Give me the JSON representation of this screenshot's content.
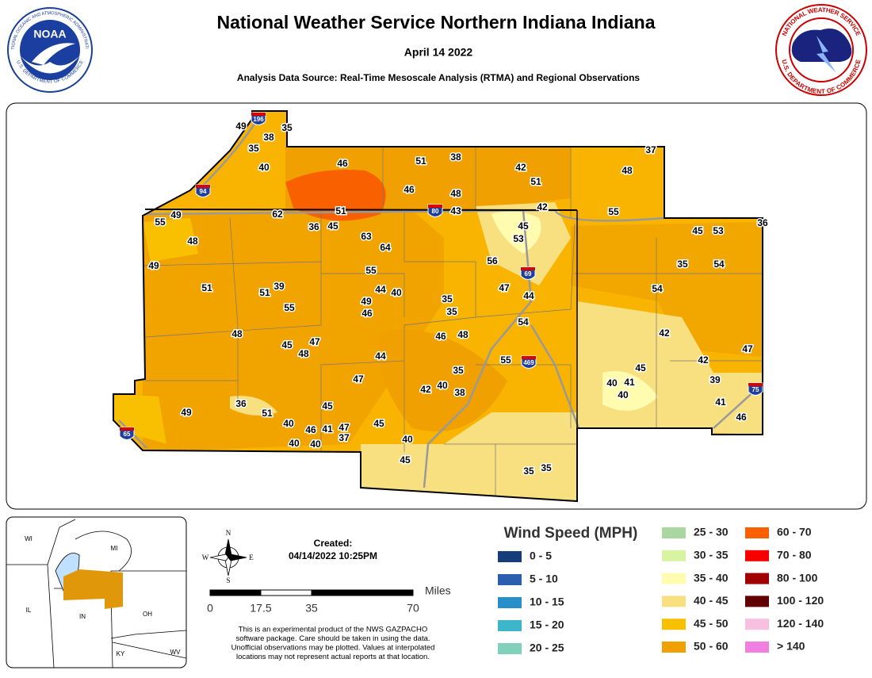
{
  "header": {
    "title": "National Weather Service Northern Indiana Indiana",
    "date": "April 14 2022",
    "subtitle": "Analysis Data Source: Real-Time Mesoscale Analysis (RTMA) and Regional Observations"
  },
  "logos": {
    "noaa": {
      "name": "NOAA",
      "ring_top": "NATIONAL OCEANIC AND ATMOSPHERIC ADMINISTRATION",
      "ring_bottom": "U.S. DEPARTMENT OF COMMERCE"
    },
    "nws": {
      "ring_top": "NATIONAL WEATHER SERVICE",
      "ring_bottom": "U.S. DEPARTMENT OF COMMERCE"
    }
  },
  "map": {
    "highways": [
      "196",
      "94",
      "80",
      "69",
      "469",
      "75",
      "65"
    ],
    "observations": [
      49,
      35,
      38,
      35,
      40,
      46,
      51,
      38,
      37,
      42,
      48,
      51,
      46,
      48,
      42,
      55,
      55,
      49,
      62,
      51,
      43,
      36,
      45,
      45,
      45,
      53,
      36,
      63,
      53,
      48,
      64,
      49,
      56,
      35,
      54,
      55,
      51,
      39,
      51,
      44,
      40,
      47,
      44,
      54,
      35,
      49,
      55,
      46,
      35,
      54,
      48,
      42,
      46,
      48,
      45,
      47,
      48,
      47,
      44,
      55,
      42,
      35,
      45,
      47,
      39,
      40,
      41,
      42,
      40,
      38,
      40,
      36,
      45,
      41,
      49,
      51,
      46,
      40,
      46,
      41,
      47,
      45,
      37,
      40,
      40,
      40,
      45,
      35,
      35
    ]
  },
  "inset": {
    "states": [
      "WI",
      "MI",
      "IL",
      "IN",
      "OH",
      "KY",
      "WV"
    ]
  },
  "info": {
    "created_label": "Created:",
    "created": "04/14/2022 10:25PM",
    "compass": [
      "N",
      "S",
      "E",
      "W"
    ],
    "scale_unit": "Miles",
    "scale_ticks": [
      "0",
      "17.5",
      "35",
      "70"
    ],
    "disclaimer": [
      "This is an experimental product of the NWS GAZPACHO",
      "software package. Care should be taken in using the data.",
      "Unofficial observations may be plotted. Values at interpolated",
      "locations may not represent actual reports at that location."
    ]
  },
  "legend": {
    "title": "Wind Speed (MPH)",
    "items": [
      {
        "label": "0 - 5",
        "color": "#163d7a"
      },
      {
        "label": "5 - 10",
        "color": "#2a5fb0"
      },
      {
        "label": "10 - 15",
        "color": "#2890c8"
      },
      {
        "label": "15 - 20",
        "color": "#3cb6c8"
      },
      {
        "label": "20 - 25",
        "color": "#80d0bc"
      },
      {
        "label": "25 - 30",
        "color": "#a8d8a0"
      },
      {
        "label": "30 - 35",
        "color": "#d8f4a0"
      },
      {
        "label": "35 - 40",
        "color": "#fffcb0"
      },
      {
        "label": "40 - 45",
        "color": "#f8e080"
      },
      {
        "label": "45 - 50",
        "color": "#f8c000"
      },
      {
        "label": "50 - 60",
        "color": "#f0a000"
      },
      {
        "label": "60 - 70",
        "color": "#f86000"
      },
      {
        "label": "70 - 80",
        "color": "#f80000"
      },
      {
        "label": "80 - 100",
        "color": "#a00000"
      },
      {
        "label": "100 - 120",
        "color": "#600000"
      },
      {
        "label": "120 - 140",
        "color": "#f8c0e0"
      },
      {
        "label": "> 140",
        "color": "#f080e0"
      }
    ]
  }
}
